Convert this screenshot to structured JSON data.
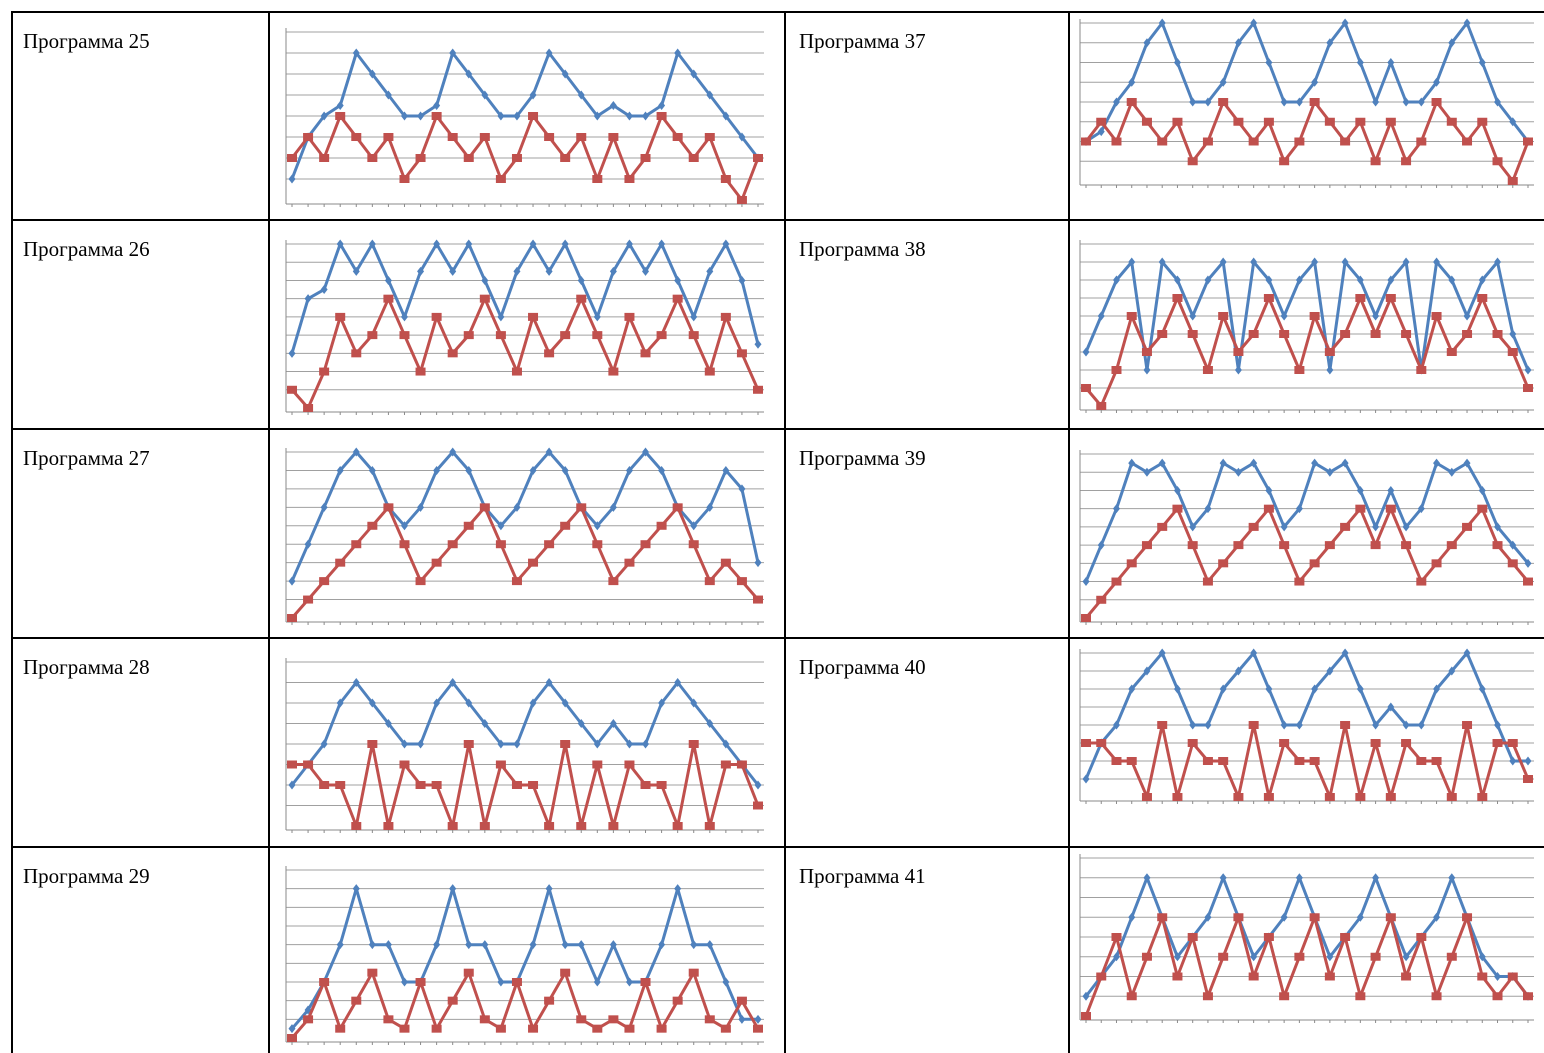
{
  "colors": {
    "blue_series": "#4f81bd",
    "red_series": "#c0504d",
    "gridline": "#a0a0a0",
    "axis": "#8a8a8a",
    "border": "#000000"
  },
  "labels": {
    "p25": "Программа 25",
    "p26": "Программа 26",
    "p27": "Программа 27",
    "p28": "Программа 28",
    "p29": "Программа 29",
    "p37": "Программа 37",
    "p38": "Программа 38",
    "p39": "Программа 39",
    "p40": "Программа 40",
    "p41": "Программа 41"
  },
  "chart_data": [
    {
      "id": "p25",
      "type": "line",
      "title": "",
      "grid": true,
      "ylim": [
        0,
        8
      ],
      "series": [
        {
          "color": "blue",
          "marker": "diamond",
          "values": [
            1,
            3,
            4,
            4.5,
            7,
            6,
            5,
            4,
            4,
            4.5,
            7,
            6,
            5,
            4,
            4,
            5,
            7,
            6,
            5,
            4,
            4.5,
            4,
            4,
            4.5,
            7,
            6,
            5,
            4,
            3,
            2
          ]
        },
        {
          "color": "red",
          "marker": "square",
          "values": [
            2,
            3,
            2,
            4,
            3,
            2,
            3,
            1,
            2,
            4,
            3,
            2,
            3,
            1,
            2,
            4,
            3,
            2,
            3,
            1,
            3,
            1,
            2,
            4,
            3,
            2,
            3,
            1,
            0,
            2
          ]
        }
      ]
    },
    {
      "id": "p26",
      "type": "line",
      "title": "",
      "grid": true,
      "ylim": [
        0,
        9
      ],
      "series": [
        {
          "color": "blue",
          "marker": "diamond",
          "values": [
            3,
            6,
            6.5,
            9,
            7.5,
            9,
            7,
            5,
            7.5,
            9,
            7.5,
            9,
            7,
            5,
            7.5,
            9,
            7.5,
            9,
            7,
            5,
            7.5,
            9,
            7.5,
            9,
            7,
            5,
            7.5,
            9,
            7,
            3.5
          ]
        },
        {
          "color": "red",
          "marker": "square",
          "values": [
            1,
            0,
            2,
            5,
            3,
            4,
            6,
            4,
            2,
            5,
            3,
            4,
            6,
            4,
            2,
            5,
            3,
            4,
            6,
            4,
            2,
            5,
            3,
            4,
            6,
            4,
            2,
            5,
            3,
            1
          ]
        }
      ]
    },
    {
      "id": "p27",
      "type": "line",
      "title": "",
      "grid": true,
      "ylim": [
        0,
        9
      ],
      "series": [
        {
          "color": "blue",
          "marker": "diamond",
          "values": [
            2,
            4,
            6,
            8,
            9,
            8,
            6,
            5,
            6,
            8,
            9,
            8,
            6,
            5,
            6,
            8,
            9,
            8,
            6,
            5,
            6,
            8,
            9,
            8,
            6,
            5,
            6,
            8,
            7,
            3
          ]
        },
        {
          "color": "red",
          "marker": "square",
          "values": [
            0,
            1,
            2,
            3,
            4,
            5,
            6,
            4,
            2,
            3,
            4,
            5,
            6,
            4,
            2,
            3,
            4,
            5,
            6,
            4,
            2,
            3,
            4,
            5,
            6,
            4,
            2,
            3,
            2,
            1
          ]
        }
      ]
    },
    {
      "id": "p28",
      "type": "line",
      "title": "",
      "grid": true,
      "ylim": [
        0,
        8
      ],
      "series": [
        {
          "color": "blue",
          "marker": "diamond",
          "values": [
            2,
            3,
            4,
            6,
            7,
            6,
            5,
            4,
            4,
            6,
            7,
            6,
            5,
            4,
            4,
            6,
            7,
            6,
            5,
            4,
            5,
            4,
            4,
            6,
            7,
            6,
            5,
            4,
            3,
            2
          ]
        },
        {
          "color": "red",
          "marker": "square",
          "values": [
            3,
            3,
            2,
            2,
            0,
            4,
            0,
            3,
            2,
            2,
            0,
            4,
            0,
            3,
            2,
            2,
            0,
            4,
            0,
            3,
            0,
            3,
            2,
            2,
            0,
            4,
            0,
            3,
            3,
            1
          ]
        }
      ]
    },
    {
      "id": "p29",
      "type": "line",
      "title": "",
      "grid": true,
      "ylim": [
        0,
        9
      ],
      "series": [
        {
          "color": "blue",
          "marker": "diamond",
          "values": [
            0.5,
            1.5,
            3,
            5,
            8,
            5,
            5,
            3,
            3,
            5,
            8,
            5,
            5,
            3,
            3,
            5,
            8,
            5,
            5,
            3,
            5,
            3,
            3,
            5,
            8,
            5,
            5,
            3,
            1,
            1
          ]
        },
        {
          "color": "red",
          "marker": "square",
          "values": [
            0,
            1,
            3,
            0.5,
            2,
            3.5,
            1,
            0.5,
            3,
            0.5,
            2,
            3.5,
            1,
            0.5,
            3,
            0.5,
            2,
            3.5,
            1,
            0.5,
            1,
            0.5,
            3,
            0.5,
            2,
            3.5,
            1,
            0.5,
            2,
            0.5
          ]
        }
      ]
    },
    {
      "id": "p37",
      "type": "line",
      "title": "",
      "grid": true,
      "ylim": [
        0,
        8
      ],
      "series": [
        {
          "color": "blue",
          "marker": "diamond",
          "values": [
            2,
            2.5,
            4,
            5,
            7,
            8,
            6,
            4,
            4,
            5,
            7,
            8,
            6,
            4,
            4,
            5,
            7,
            8,
            6,
            4,
            6,
            4,
            4,
            5,
            7,
            8,
            6,
            4,
            3,
            2
          ]
        },
        {
          "color": "red",
          "marker": "square",
          "values": [
            2,
            3,
            2,
            4,
            3,
            2,
            3,
            1,
            2,
            4,
            3,
            2,
            3,
            1,
            2,
            4,
            3,
            2,
            3,
            1,
            3,
            1,
            2,
            4,
            3,
            2,
            3,
            1,
            0,
            2
          ]
        }
      ]
    },
    {
      "id": "p38",
      "type": "line",
      "title": "",
      "grid": true,
      "ylim": [
        0,
        9
      ],
      "series": [
        {
          "color": "blue",
          "marker": "diamond",
          "values": [
            3,
            5,
            7,
            8,
            2,
            8,
            7,
            5,
            7,
            8,
            2,
            8,
            7,
            5,
            7,
            8,
            2,
            8,
            7,
            5,
            7,
            8,
            2,
            8,
            7,
            5,
            7,
            8,
            4,
            2
          ]
        },
        {
          "color": "red",
          "marker": "square",
          "values": [
            1,
            0,
            2,
            5,
            3,
            4,
            6,
            4,
            2,
            5,
            3,
            4,
            6,
            4,
            2,
            5,
            3,
            4,
            6,
            4,
            6,
            4,
            2,
            5,
            3,
            4,
            6,
            4,
            3,
            1
          ]
        }
      ]
    },
    {
      "id": "p39",
      "type": "line",
      "title": "",
      "grid": true,
      "ylim": [
        0,
        9
      ],
      "series": [
        {
          "color": "blue",
          "marker": "diamond",
          "values": [
            2,
            4,
            6,
            8.5,
            8,
            8.5,
            7,
            5,
            6,
            8.5,
            8,
            8.5,
            7,
            5,
            6,
            8.5,
            8,
            8.5,
            7,
            5,
            7,
            5,
            6,
            8.5,
            8,
            8.5,
            7,
            5,
            4,
            3
          ]
        },
        {
          "color": "red",
          "marker": "square",
          "values": [
            0,
            1,
            2,
            3,
            4,
            5,
            6,
            4,
            2,
            3,
            4,
            5,
            6,
            4,
            2,
            3,
            4,
            5,
            6,
            4,
            6,
            4,
            2,
            3,
            4,
            5,
            6,
            4,
            3,
            2
          ]
        }
      ]
    },
    {
      "id": "p40",
      "type": "line",
      "title": "",
      "grid": true,
      "ylim": [
        0,
        8
      ],
      "series": [
        {
          "color": "blue",
          "marker": "diamond",
          "values": [
            1,
            3,
            4,
            6,
            7,
            8,
            6,
            4,
            4,
            6,
            7,
            8,
            6,
            4,
            4,
            6,
            7,
            8,
            6,
            4,
            5,
            4,
            4,
            6,
            7,
            8,
            6,
            4,
            2,
            2
          ]
        },
        {
          "color": "red",
          "marker": "square",
          "values": [
            3,
            3,
            2,
            2,
            0,
            4,
            0,
            3,
            2,
            2,
            0,
            4,
            0,
            3,
            2,
            2,
            0,
            4,
            0,
            3,
            0,
            3,
            2,
            2,
            0,
            4,
            0,
            3,
            3,
            1
          ]
        }
      ]
    },
    {
      "id": "p41",
      "type": "line",
      "title": "",
      "grid": true,
      "ylim": [
        0,
        8
      ],
      "series": [
        {
          "color": "blue",
          "marker": "diamond",
          "values": [
            1,
            2,
            3,
            5,
            7,
            5,
            3,
            4,
            5,
            7,
            5,
            3,
            4,
            5,
            7,
            5,
            3,
            4,
            5,
            7,
            5,
            3,
            4,
            5,
            7,
            5,
            3,
            2,
            2,
            1
          ]
        },
        {
          "color": "red",
          "marker": "square",
          "values": [
            0,
            2,
            4,
            1,
            3,
            5,
            2,
            4,
            1,
            3,
            5,
            2,
            4,
            1,
            3,
            5,
            2,
            4,
            1,
            3,
            5,
            2,
            4,
            1,
            3,
            5,
            2,
            1,
            2,
            1
          ]
        }
      ]
    }
  ]
}
